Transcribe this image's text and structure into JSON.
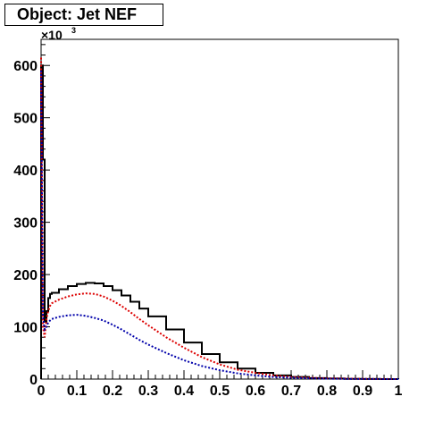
{
  "chart_data": {
    "type": "line",
    "title": "Object: Jet NEF",
    "xlabel": "",
    "ylabel": "",
    "y_exponent_base": "×10",
    "y_exponent_power": "3",
    "xlim": [
      0,
      1
    ],
    "ylim": [
      0,
      650
    ],
    "grid": false,
    "x_ticks": [
      "0",
      "0.1",
      "0.2",
      "0.3",
      "0.4",
      "0.5",
      "0.6",
      "0.7",
      "0.8",
      "0.9",
      "1"
    ],
    "y_ticks": [
      "0",
      "100",
      "200",
      "300",
      "400",
      "500",
      "600"
    ],
    "series": [
      {
        "color": "#000000",
        "style": "step",
        "x": [
          0.0,
          0.005,
          0.01,
          0.015,
          0.02,
          0.025,
          0.03,
          0.05,
          0.075,
          0.1,
          0.125,
          0.15,
          0.175,
          0.2,
          0.225,
          0.25,
          0.275,
          0.3,
          0.35,
          0.4,
          0.45,
          0.5,
          0.55,
          0.6,
          0.65,
          0.7,
          0.75,
          0.8,
          0.85,
          0.9,
          0.95,
          1.0
        ],
        "y": [
          600,
          420,
          110,
          130,
          155,
          163,
          165,
          172,
          178,
          182,
          184,
          183,
          178,
          170,
          160,
          148,
          135,
          120,
          95,
          70,
          48,
          32,
          20,
          12,
          7,
          4,
          2,
          1,
          0.5,
          0.3,
          0.1,
          0
        ]
      },
      {
        "color": "#dd0000",
        "style": "dotted",
        "x": [
          0.0,
          0.005,
          0.01,
          0.015,
          0.02,
          0.025,
          0.03,
          0.05,
          0.075,
          0.1,
          0.125,
          0.15,
          0.175,
          0.2,
          0.225,
          0.25,
          0.275,
          0.3,
          0.35,
          0.4,
          0.45,
          0.5,
          0.55,
          0.6,
          0.65,
          0.7,
          0.75,
          0.8,
          0.85,
          0.9,
          0.95,
          1.0
        ],
        "y": [
          615,
          100,
          80,
          115,
          130,
          140,
          145,
          152,
          158,
          162,
          164,
          163,
          158,
          150,
          140,
          128,
          115,
          103,
          80,
          60,
          42,
          28,
          18,
          12,
          7,
          4,
          2.5,
          1.5,
          1,
          0.5,
          0.2,
          0
        ]
      },
      {
        "color": "#0000aa",
        "style": "dotted",
        "x": [
          0.0,
          0.005,
          0.01,
          0.015,
          0.02,
          0.025,
          0.03,
          0.05,
          0.075,
          0.1,
          0.125,
          0.15,
          0.175,
          0.2,
          0.225,
          0.25,
          0.275,
          0.3,
          0.35,
          0.4,
          0.45,
          0.5,
          0.55,
          0.6,
          0.65,
          0.7,
          0.75,
          0.8,
          0.85,
          0.9,
          0.95,
          1.0
        ],
        "y": [
          590,
          120,
          95,
          100,
          108,
          112,
          115,
          119,
          122,
          123,
          121,
          117,
          112,
          104,
          95,
          85,
          75,
          66,
          50,
          36,
          25,
          17,
          11,
          7,
          4,
          2.5,
          1.5,
          0.8,
          0.4,
          0.2,
          0.1,
          0
        ]
      }
    ]
  }
}
